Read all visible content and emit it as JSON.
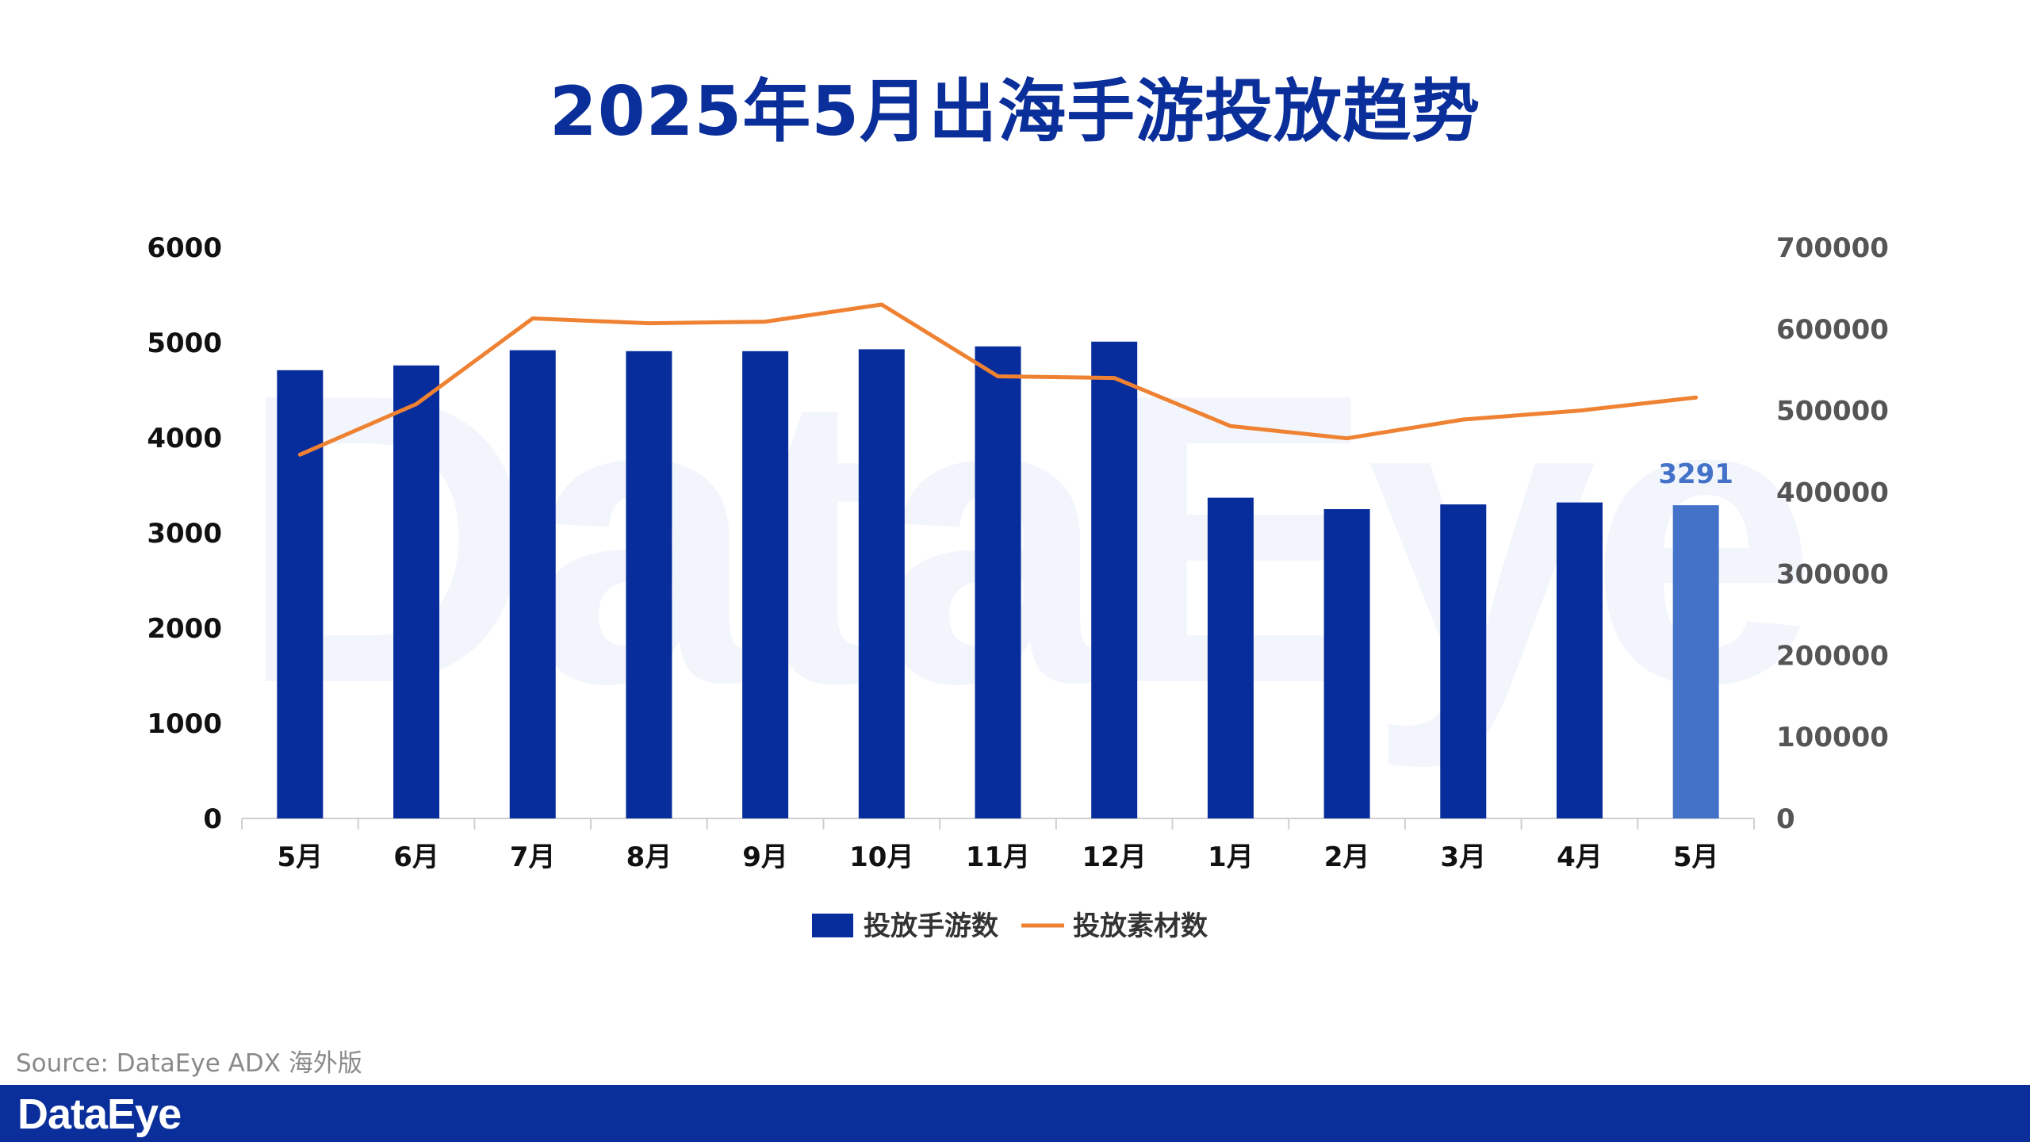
{
  "title": "2025年5月出海手游投放趋势",
  "source": "Source: DataEye ADX 海外版",
  "footer": {
    "brand": "DataEye"
  },
  "watermark": "DataEye",
  "colors": {
    "title": "#0a2f9a",
    "bar": "#062d9b",
    "bar_highlight": "#4472c8",
    "line": "#ef8232",
    "axis": "#cfcfcf",
    "footer_bg": "#0a2f9a"
  },
  "chart_data": {
    "type": "bar+line",
    "categories": [
      "5月",
      "6月",
      "7月",
      "8月",
      "9月",
      "10月",
      "11月",
      "12月",
      "1月",
      "2月",
      "3月",
      "4月",
      "5月"
    ],
    "series": [
      {
        "name": "投放手游数",
        "type": "bar",
        "axis": "left",
        "values": [
          4710,
          4760,
          4920,
          4910,
          4910,
          4930,
          4960,
          5010,
          3370,
          3250,
          3300,
          3320,
          3291
        ]
      },
      {
        "name": "投放素材数",
        "type": "line",
        "axis": "right",
        "values": [
          446000,
          508000,
          613000,
          607000,
          609000,
          630000,
          542000,
          540000,
          481000,
          466000,
          489000,
          500000,
          516000
        ]
      }
    ],
    "left_axis": {
      "min": 0,
      "max": 6000,
      "ticks": [
        0,
        1000,
        2000,
        3000,
        4000,
        5000,
        6000
      ]
    },
    "right_axis": {
      "min": 0,
      "max": 700000,
      "ticks": [
        0,
        100000,
        200000,
        300000,
        400000,
        500000,
        600000,
        700000
      ]
    },
    "data_labels": [
      {
        "index": 12,
        "series": "投放手游数",
        "text": "3291"
      }
    ],
    "legend_position": "bottom-center"
  }
}
